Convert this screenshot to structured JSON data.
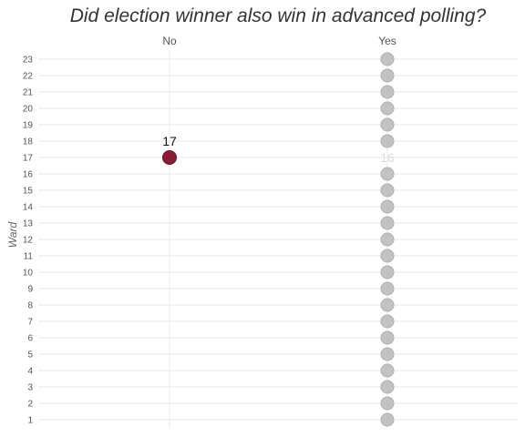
{
  "chart_data": {
    "type": "scatter",
    "title": "Did election winner also win in advanced polling?",
    "ylabel": "Ward",
    "xlabel": "",
    "categories": [
      "No",
      "Yes"
    ],
    "yticks": [
      "1",
      "2",
      "3",
      "4",
      "5",
      "6",
      "7",
      "8",
      "9",
      "10",
      "11",
      "12",
      "13",
      "14",
      "15",
      "16",
      "17",
      "18",
      "19",
      "20",
      "21",
      "22",
      "23"
    ],
    "ylim": [
      1,
      23
    ],
    "grid": true,
    "legend": "none",
    "points": [
      {
        "x": "Yes",
        "y": 1
      },
      {
        "x": "Yes",
        "y": 2
      },
      {
        "x": "Yes",
        "y": 3
      },
      {
        "x": "Yes",
        "y": 4
      },
      {
        "x": "Yes",
        "y": 5
      },
      {
        "x": "Yes",
        "y": 6
      },
      {
        "x": "Yes",
        "y": 7
      },
      {
        "x": "Yes",
        "y": 8
      },
      {
        "x": "Yes",
        "y": 9
      },
      {
        "x": "Yes",
        "y": 10
      },
      {
        "x": "Yes",
        "y": 11
      },
      {
        "x": "Yes",
        "y": 12
      },
      {
        "x": "Yes",
        "y": 13
      },
      {
        "x": "Yes",
        "y": 14
      },
      {
        "x": "Yes",
        "y": 15
      },
      {
        "x": "Yes",
        "y": 16
      },
      {
        "x": "No",
        "y": 17,
        "highlight": true
      },
      {
        "x": "Yes",
        "y": 18
      },
      {
        "x": "Yes",
        "y": 19
      },
      {
        "x": "Yes",
        "y": 20
      },
      {
        "x": "Yes",
        "y": 21
      },
      {
        "x": "Yes",
        "y": 22
      },
      {
        "x": "Yes",
        "y": 23
      }
    ],
    "annotations": [
      {
        "text": "17",
        "x": "No",
        "y": 17,
        "color": "#111111"
      },
      {
        "text": "16",
        "x": "Yes",
        "y": 17,
        "color": "#dddddd"
      }
    ],
    "colors": {
      "highlight": "#8c1c33",
      "highlight_stroke": "#6a1426",
      "default": "#c2c2c2",
      "default_stroke": "#b0b0b0"
    }
  }
}
